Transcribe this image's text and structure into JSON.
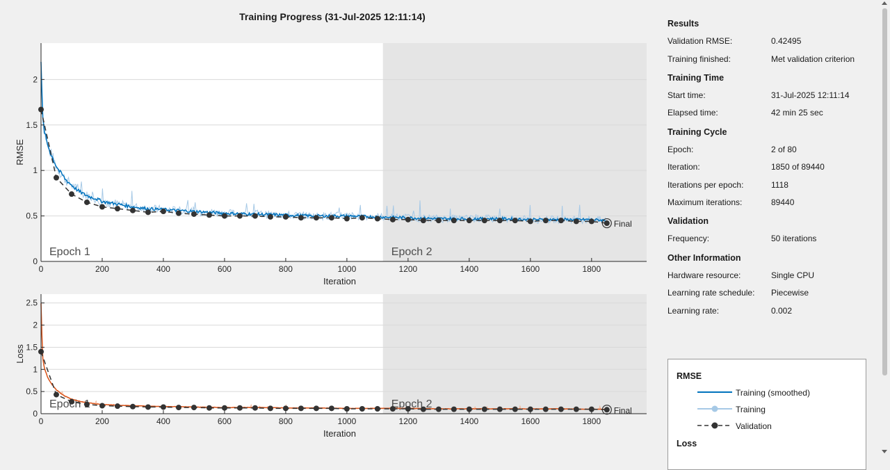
{
  "title": "Training Progress (31-Jul-2025 12:11:14)",
  "chart_data": [
    {
      "type": "line",
      "ylabel": "RMSE",
      "xlabel": "Iteration",
      "xlim": [
        0,
        1980
      ],
      "ylim": [
        0,
        2.4
      ],
      "x_ticks": [
        "0",
        "200",
        "400",
        "600",
        "800",
        "1000",
        "1200",
        "1400",
        "1600",
        "1800"
      ],
      "y_ticks": [
        "0",
        "0.5",
        "1",
        "1.5",
        "2"
      ],
      "y_tick_values": [
        0,
        0.5,
        1,
        1.5,
        2
      ],
      "epochs": [
        {
          "label": "Epoch 1",
          "start": 0,
          "end": 1118
        },
        {
          "label": "Epoch 2",
          "start": 1118,
          "end": 1980
        }
      ],
      "final_label": "Final",
      "grid": true,
      "series": [
        {
          "name": "Validation",
          "x": [
            0,
            50,
            100,
            150,
            200,
            250,
            300,
            350,
            400,
            450,
            500,
            550,
            600,
            650,
            700,
            750,
            800,
            850,
            900,
            950,
            1000,
            1050,
            1100,
            1150,
            1200,
            1250,
            1300,
            1350,
            1400,
            1450,
            1500,
            1550,
            1600,
            1650,
            1700,
            1750,
            1800,
            1850
          ],
          "values": [
            1.67,
            0.92,
            0.74,
            0.65,
            0.6,
            0.58,
            0.56,
            0.54,
            0.55,
            0.53,
            0.52,
            0.51,
            0.5,
            0.5,
            0.5,
            0.49,
            0.49,
            0.48,
            0.48,
            0.48,
            0.47,
            0.48,
            0.47,
            0.46,
            0.46,
            0.45,
            0.45,
            0.45,
            0.45,
            0.45,
            0.45,
            0.45,
            0.44,
            0.45,
            0.45,
            0.44,
            0.44,
            0.42
          ]
        },
        {
          "name": "Training (smoothed)",
          "x": [
            0,
            5,
            10,
            20,
            30,
            40,
            50,
            60,
            70,
            80,
            90,
            100,
            120,
            140,
            160,
            180,
            200,
            250,
            300,
            350,
            400,
            450,
            500,
            600,
            700,
            800,
            900,
            1000,
            1100,
            1200,
            1300,
            1400,
            1500,
            1600,
            1700,
            1800,
            1850
          ],
          "values": [
            2.2,
            1.6,
            1.45,
            1.3,
            1.2,
            1.12,
            1.05,
            0.99,
            0.95,
            0.9,
            0.87,
            0.84,
            0.78,
            0.74,
            0.71,
            0.69,
            0.66,
            0.63,
            0.6,
            0.58,
            0.57,
            0.56,
            0.55,
            0.53,
            0.52,
            0.51,
            0.5,
            0.5,
            0.49,
            0.48,
            0.47,
            0.47,
            0.47,
            0.46,
            0.46,
            0.46,
            0.45
          ]
        }
      ]
    },
    {
      "type": "line",
      "ylabel": "Loss",
      "xlabel": "Iteration",
      "xlim": [
        0,
        1980
      ],
      "ylim": [
        0,
        2.7
      ],
      "x_ticks": [
        "0",
        "200",
        "400",
        "600",
        "800",
        "1000",
        "1200",
        "1400",
        "1600",
        "1800"
      ],
      "y_ticks": [
        "0",
        "0.5",
        "1",
        "1.5",
        "2",
        "2.5"
      ],
      "y_tick_values": [
        0,
        0.5,
        1,
        1.5,
        2,
        2.5
      ],
      "epochs": [
        {
          "label": "Epoch 1",
          "start": 0,
          "end": 1118
        },
        {
          "label": "Epoch 2",
          "start": 1118,
          "end": 1980
        }
      ],
      "final_label": "Final",
      "grid": true,
      "series": [
        {
          "name": "Validation",
          "x": [
            0,
            50,
            100,
            150,
            200,
            250,
            300,
            350,
            400,
            450,
            500,
            550,
            600,
            650,
            700,
            750,
            800,
            850,
            900,
            950,
            1000,
            1050,
            1100,
            1150,
            1200,
            1250,
            1300,
            1350,
            1400,
            1450,
            1500,
            1550,
            1600,
            1650,
            1700,
            1750,
            1800,
            1850
          ],
          "values": [
            1.4,
            0.43,
            0.27,
            0.21,
            0.18,
            0.17,
            0.16,
            0.15,
            0.15,
            0.14,
            0.14,
            0.13,
            0.13,
            0.13,
            0.13,
            0.12,
            0.12,
            0.12,
            0.12,
            0.12,
            0.11,
            0.11,
            0.11,
            0.11,
            0.11,
            0.1,
            0.1,
            0.1,
            0.1,
            0.1,
            0.1,
            0.1,
            0.1,
            0.1,
            0.1,
            0.1,
            0.1,
            0.09
          ]
        },
        {
          "name": "Training (smoothed)",
          "x": [
            0,
            5,
            10,
            20,
            30,
            40,
            50,
            60,
            70,
            80,
            90,
            100,
            120,
            140,
            160,
            180,
            200,
            250,
            300,
            350,
            400,
            450,
            500,
            600,
            700,
            800,
            900,
            1000,
            1100,
            1200,
            1300,
            1400,
            1500,
            1600,
            1700,
            1800,
            1850
          ],
          "values": [
            2.5,
            1.3,
            1.05,
            0.85,
            0.72,
            0.62,
            0.54,
            0.48,
            0.43,
            0.39,
            0.36,
            0.33,
            0.29,
            0.26,
            0.24,
            0.22,
            0.21,
            0.19,
            0.18,
            0.17,
            0.16,
            0.16,
            0.15,
            0.14,
            0.14,
            0.13,
            0.13,
            0.12,
            0.12,
            0.12,
            0.11,
            0.11,
            0.11,
            0.11,
            0.11,
            0.1,
            0.1
          ]
        }
      ]
    }
  ],
  "info": {
    "results_title": "Results",
    "validation_rmse_label": "Validation RMSE:",
    "validation_rmse_value": "0.42495",
    "training_finished_label": "Training finished:",
    "training_finished_value": "Met validation criterion",
    "training_time_title": "Training Time",
    "start_time_label": "Start time:",
    "start_time_value": "31-Jul-2025 12:11:14",
    "elapsed_time_label": "Elapsed time:",
    "elapsed_time_value": "42 min 25 sec",
    "training_cycle_title": "Training Cycle",
    "epoch_label": "Epoch:",
    "epoch_value": "2 of 80",
    "iteration_label": "Iteration:",
    "iteration_value": "1850 of 89440",
    "iter_per_epoch_label": "Iterations per epoch:",
    "iter_per_epoch_value": "1118",
    "max_iter_label": "Maximum iterations:",
    "max_iter_value": "89440",
    "validation_title": "Validation",
    "frequency_label": "Frequency:",
    "frequency_value": "50 iterations",
    "other_title": "Other Information",
    "hardware_label": "Hardware resource:",
    "hardware_value": "Single CPU",
    "lr_schedule_label": "Learning rate schedule:",
    "lr_schedule_value": "Piecewise",
    "lr_label": "Learning rate:",
    "lr_value": "0.002"
  },
  "legend": {
    "rmse_title": "RMSE",
    "training_smoothed": "Training (smoothed)",
    "training": "Training",
    "validation": "Validation",
    "loss_title": "Loss"
  },
  "colors": {
    "rmse_line": "#0072bd",
    "rmse_raw": "#a6c9e6",
    "loss_line": "#d95319",
    "loss_raw": "#f0b89c",
    "validation": "#333333",
    "epoch_shade": "#e5e5e5"
  }
}
